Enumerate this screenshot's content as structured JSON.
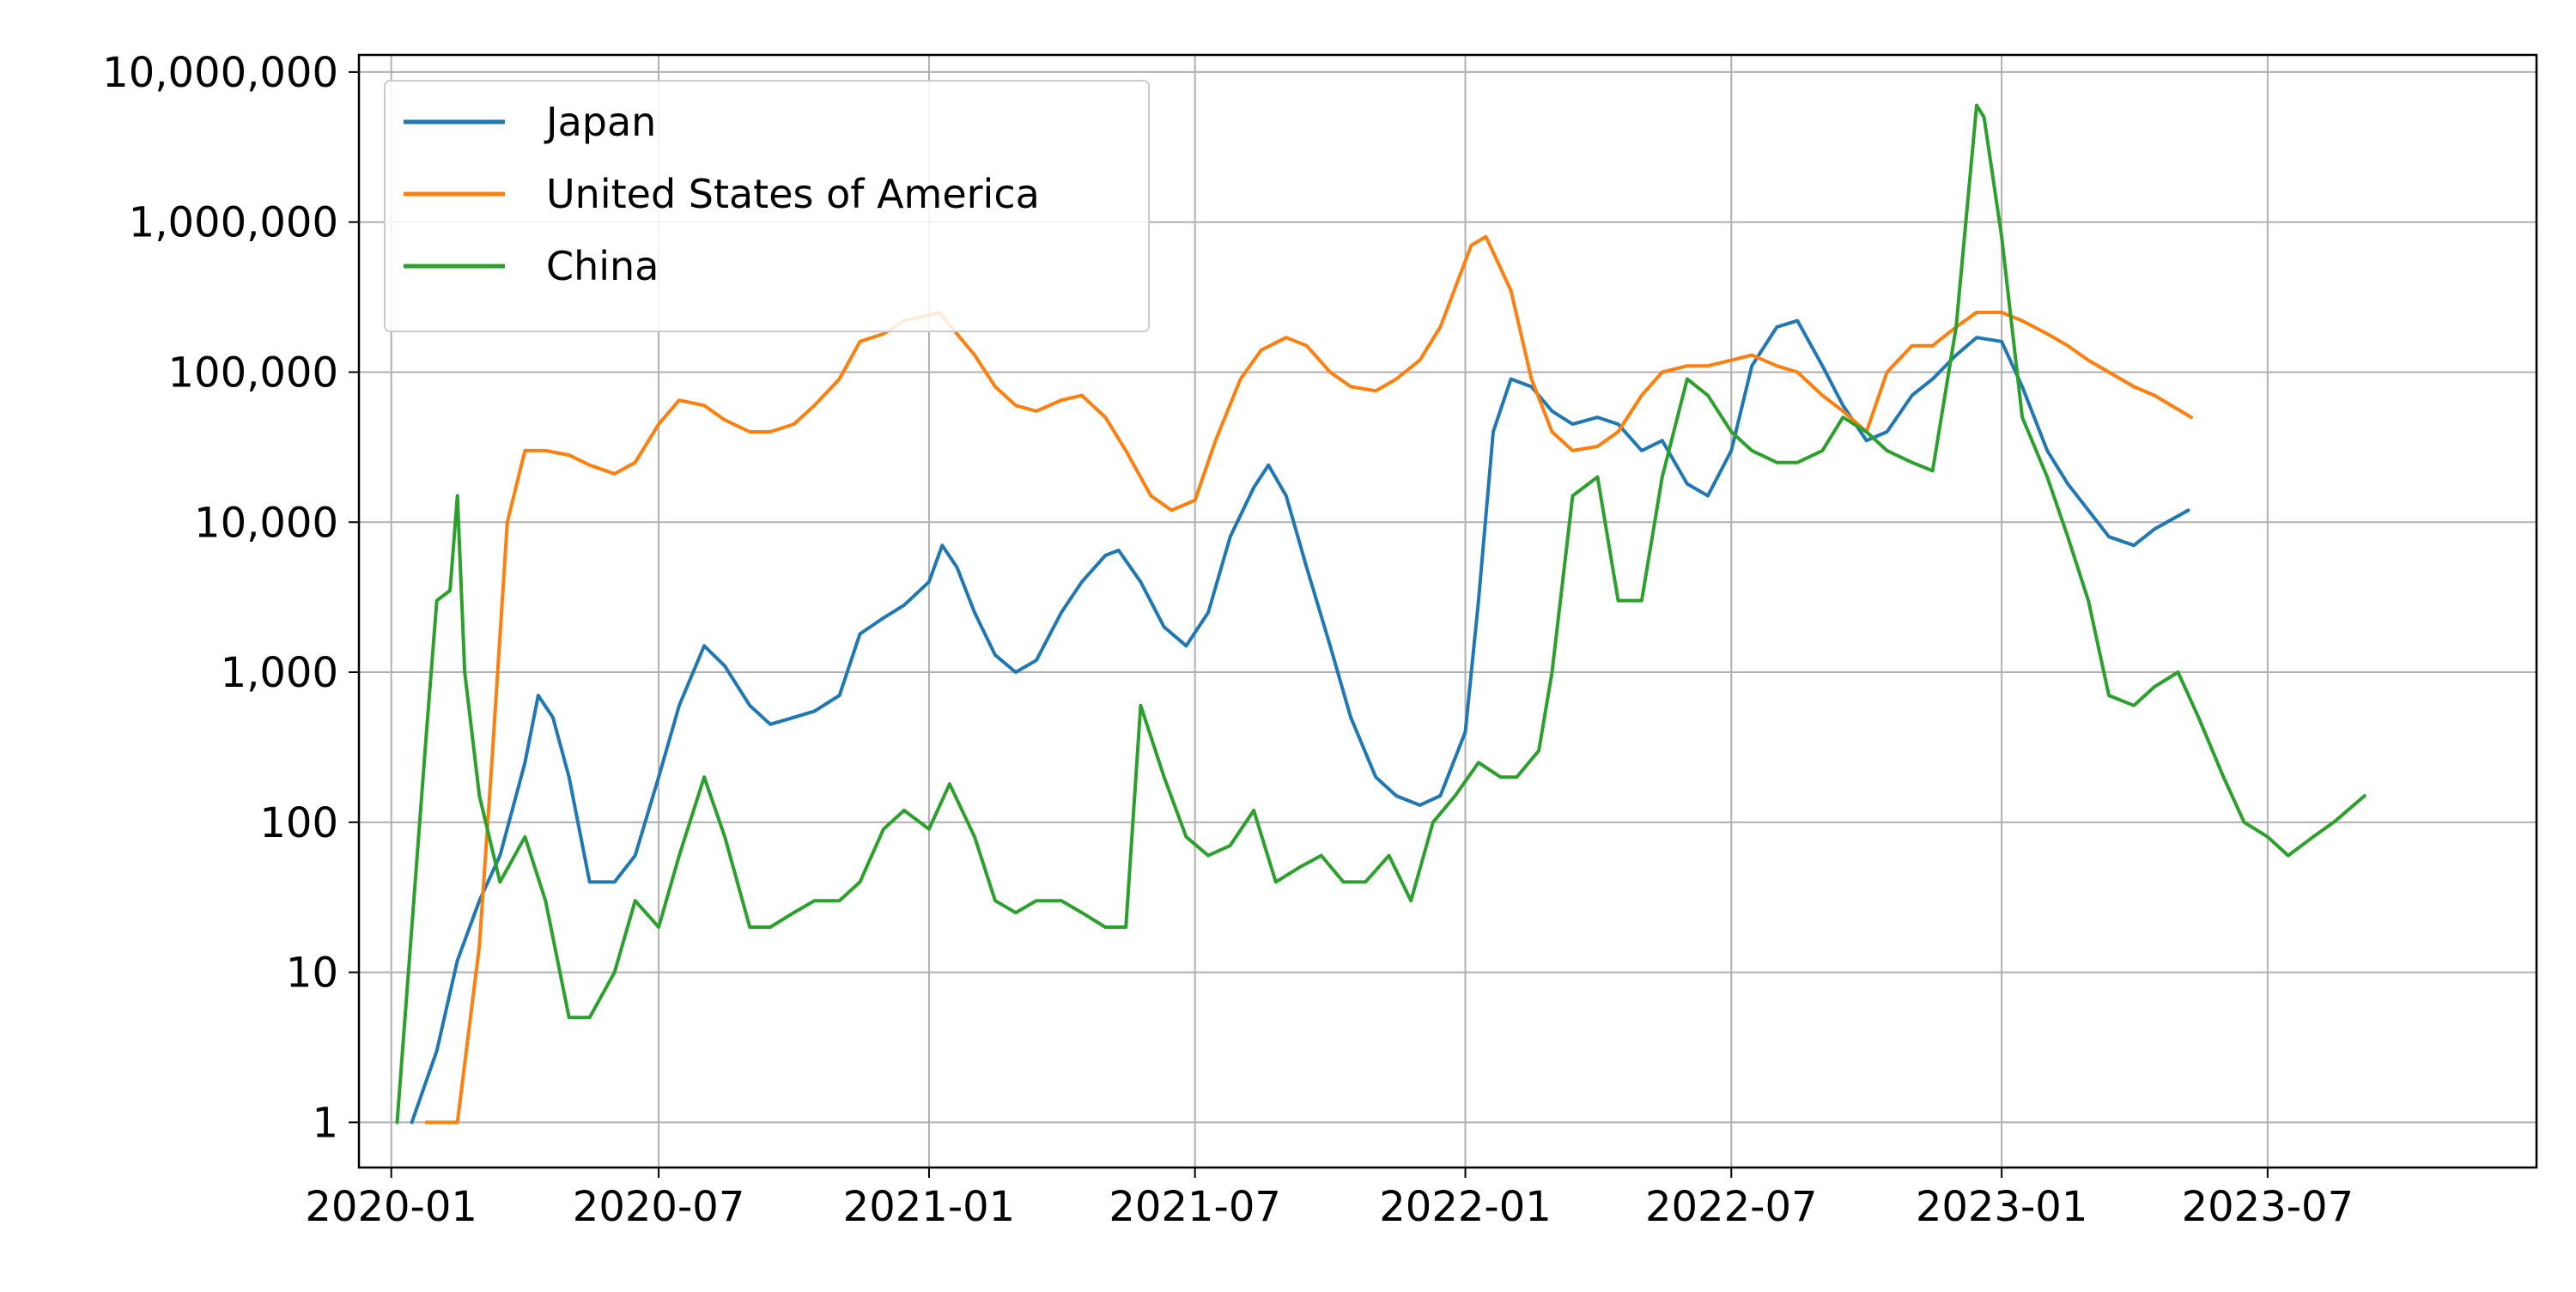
{
  "chart_data": {
    "type": "line",
    "title": "",
    "xlabel": "",
    "ylabel": "",
    "yscale": "log",
    "ylim": [
      0.5,
      13000000
    ],
    "xlim": [
      "2019-12-10",
      "2023-12-31"
    ],
    "grid": true,
    "legend_position": "top-left",
    "x_ticks": [
      {
        "date": "2020-01-01",
        "label": "2020-01"
      },
      {
        "date": "2020-07-01",
        "label": "2020-07"
      },
      {
        "date": "2021-01-01",
        "label": "2021-01"
      },
      {
        "date": "2021-07-01",
        "label": "2021-07"
      },
      {
        "date": "2022-01-01",
        "label": "2022-01"
      },
      {
        "date": "2022-07-01",
        "label": "2022-07"
      },
      {
        "date": "2023-01-01",
        "label": "2023-01"
      },
      {
        "date": "2023-07-01",
        "label": "2023-07"
      }
    ],
    "y_ticks": [
      {
        "value": 1,
        "label": "1"
      },
      {
        "value": 10,
        "label": "10"
      },
      {
        "value": 100,
        "label": "100"
      },
      {
        "value": 1000,
        "label": "1,000"
      },
      {
        "value": 10000,
        "label": "10,000"
      },
      {
        "value": 100000,
        "label": "100,000"
      },
      {
        "value": 1000000,
        "label": "1,000,000"
      },
      {
        "value": 10000000,
        "label": "10,000,000"
      }
    ],
    "series": [
      {
        "name": "Japan",
        "color": "#1f77b4",
        "points": [
          [
            "2020-01-15",
            1
          ],
          [
            "2020-02-01",
            3
          ],
          [
            "2020-02-15",
            12
          ],
          [
            "2020-03-01",
            30
          ],
          [
            "2020-03-15",
            60
          ],
          [
            "2020-04-01",
            250
          ],
          [
            "2020-04-10",
            700
          ],
          [
            "2020-04-20",
            500
          ],
          [
            "2020-05-01",
            200
          ],
          [
            "2020-05-15",
            40
          ],
          [
            "2020-06-01",
            40
          ],
          [
            "2020-06-15",
            60
          ],
          [
            "2020-07-01",
            200
          ],
          [
            "2020-07-15",
            600
          ],
          [
            "2020-08-01",
            1500
          ],
          [
            "2020-08-15",
            1100
          ],
          [
            "2020-09-01",
            600
          ],
          [
            "2020-09-15",
            450
          ],
          [
            "2020-10-01",
            500
          ],
          [
            "2020-10-15",
            550
          ],
          [
            "2020-11-01",
            700
          ],
          [
            "2020-11-15",
            1800
          ],
          [
            "2020-12-01",
            2300
          ],
          [
            "2020-12-15",
            2800
          ],
          [
            "2021-01-01",
            4000
          ],
          [
            "2021-01-10",
            7000
          ],
          [
            "2021-01-20",
            5000
          ],
          [
            "2021-02-01",
            2500
          ],
          [
            "2021-02-15",
            1300
          ],
          [
            "2021-03-01",
            1000
          ],
          [
            "2021-03-15",
            1200
          ],
          [
            "2021-04-01",
            2500
          ],
          [
            "2021-04-15",
            4000
          ],
          [
            "2021-05-01",
            6000
          ],
          [
            "2021-05-10",
            6500
          ],
          [
            "2021-05-25",
            4000
          ],
          [
            "2021-06-10",
            2000
          ],
          [
            "2021-06-25",
            1500
          ],
          [
            "2021-07-10",
            2500
          ],
          [
            "2021-07-25",
            8000
          ],
          [
            "2021-08-10",
            17000
          ],
          [
            "2021-08-20",
            24000
          ],
          [
            "2021-09-01",
            15000
          ],
          [
            "2021-09-15",
            5000
          ],
          [
            "2021-10-01",
            1500
          ],
          [
            "2021-10-15",
            500
          ],
          [
            "2021-11-01",
            200
          ],
          [
            "2021-11-15",
            150
          ],
          [
            "2021-12-01",
            130
          ],
          [
            "2021-12-15",
            150
          ],
          [
            "2022-01-01",
            400
          ],
          [
            "2022-01-10",
            3000
          ],
          [
            "2022-01-20",
            40000
          ],
          [
            "2022-02-01",
            90000
          ],
          [
            "2022-02-15",
            80000
          ],
          [
            "2022-03-01",
            55000
          ],
          [
            "2022-03-15",
            45000
          ],
          [
            "2022-04-01",
            50000
          ],
          [
            "2022-04-15",
            45000
          ],
          [
            "2022-05-01",
            30000
          ],
          [
            "2022-05-15",
            35000
          ],
          [
            "2022-06-01",
            18000
          ],
          [
            "2022-06-15",
            15000
          ],
          [
            "2022-07-01",
            30000
          ],
          [
            "2022-07-15",
            110000
          ],
          [
            "2022-08-01",
            200000
          ],
          [
            "2022-08-15",
            220000
          ],
          [
            "2022-09-01",
            110000
          ],
          [
            "2022-09-15",
            60000
          ],
          [
            "2022-10-01",
            35000
          ],
          [
            "2022-10-15",
            40000
          ],
          [
            "2022-11-01",
            70000
          ],
          [
            "2022-11-15",
            90000
          ],
          [
            "2022-12-01",
            130000
          ],
          [
            "2022-12-15",
            170000
          ],
          [
            "2023-01-01",
            160000
          ],
          [
            "2023-01-15",
            80000
          ],
          [
            "2023-02-01",
            30000
          ],
          [
            "2023-02-15",
            18000
          ],
          [
            "2023-03-01",
            12000
          ],
          [
            "2023-03-15",
            8000
          ],
          [
            "2023-04-01",
            7000
          ],
          [
            "2023-04-15",
            9000
          ],
          [
            "2023-05-08",
            12000
          ]
        ]
      },
      {
        "name": "United States of America",
        "color": "#ff7f0e",
        "points": [
          [
            "2020-01-25",
            1
          ],
          [
            "2020-02-15",
            1
          ],
          [
            "2020-03-01",
            15
          ],
          [
            "2020-03-10",
            300
          ],
          [
            "2020-03-20",
            10000
          ],
          [
            "2020-04-01",
            30000
          ],
          [
            "2020-04-15",
            30000
          ],
          [
            "2020-05-01",
            28000
          ],
          [
            "2020-05-15",
            24000
          ],
          [
            "2020-06-01",
            21000
          ],
          [
            "2020-06-15",
            25000
          ],
          [
            "2020-07-01",
            45000
          ],
          [
            "2020-07-15",
            65000
          ],
          [
            "2020-08-01",
            60000
          ],
          [
            "2020-08-15",
            48000
          ],
          [
            "2020-09-01",
            40000
          ],
          [
            "2020-09-15",
            40000
          ],
          [
            "2020-10-01",
            45000
          ],
          [
            "2020-10-15",
            60000
          ],
          [
            "2020-11-01",
            90000
          ],
          [
            "2020-11-15",
            160000
          ],
          [
            "2020-12-01",
            180000
          ],
          [
            "2020-12-15",
            220000
          ],
          [
            "2021-01-08",
            250000
          ],
          [
            "2021-01-20",
            180000
          ],
          [
            "2021-02-01",
            130000
          ],
          [
            "2021-02-15",
            80000
          ],
          [
            "2021-03-01",
            60000
          ],
          [
            "2021-03-15",
            55000
          ],
          [
            "2021-04-01",
            65000
          ],
          [
            "2021-04-15",
            70000
          ],
          [
            "2021-05-01",
            50000
          ],
          [
            "2021-05-15",
            30000
          ],
          [
            "2021-06-01",
            15000
          ],
          [
            "2021-06-15",
            12000
          ],
          [
            "2021-07-01",
            14000
          ],
          [
            "2021-07-15",
            35000
          ],
          [
            "2021-08-01",
            90000
          ],
          [
            "2021-08-15",
            140000
          ],
          [
            "2021-09-01",
            170000
          ],
          [
            "2021-09-15",
            150000
          ],
          [
            "2021-10-01",
            100000
          ],
          [
            "2021-10-15",
            80000
          ],
          [
            "2021-11-01",
            75000
          ],
          [
            "2021-11-15",
            90000
          ],
          [
            "2021-12-01",
            120000
          ],
          [
            "2021-12-15",
            200000
          ],
          [
            "2022-01-05",
            700000
          ],
          [
            "2022-01-15",
            800000
          ],
          [
            "2022-02-01",
            350000
          ],
          [
            "2022-02-15",
            90000
          ],
          [
            "2022-03-01",
            40000
          ],
          [
            "2022-03-15",
            30000
          ],
          [
            "2022-04-01",
            32000
          ],
          [
            "2022-04-15",
            40000
          ],
          [
            "2022-05-01",
            70000
          ],
          [
            "2022-05-15",
            100000
          ],
          [
            "2022-06-01",
            110000
          ],
          [
            "2022-06-15",
            110000
          ],
          [
            "2022-07-01",
            120000
          ],
          [
            "2022-07-15",
            130000
          ],
          [
            "2022-08-01",
            110000
          ],
          [
            "2022-08-15",
            100000
          ],
          [
            "2022-09-01",
            70000
          ],
          [
            "2022-09-15",
            55000
          ],
          [
            "2022-10-01",
            40000
          ],
          [
            "2022-10-15",
            100000
          ],
          [
            "2022-11-01",
            150000
          ],
          [
            "2022-11-15",
            150000
          ],
          [
            "2022-12-01",
            200000
          ],
          [
            "2022-12-15",
            250000
          ],
          [
            "2023-01-01",
            250000
          ],
          [
            "2023-01-15",
            220000
          ],
          [
            "2023-02-01",
            180000
          ],
          [
            "2023-02-15",
            150000
          ],
          [
            "2023-03-01",
            120000
          ],
          [
            "2023-03-15",
            100000
          ],
          [
            "2023-04-01",
            80000
          ],
          [
            "2023-04-15",
            70000
          ],
          [
            "2023-05-10",
            50000
          ]
        ]
      },
      {
        "name": "China",
        "color": "#2ca02c",
        "points": [
          [
            "2020-01-05",
            1
          ],
          [
            "2020-01-15",
            20
          ],
          [
            "2020-01-25",
            400
          ],
          [
            "2020-02-01",
            3000
          ],
          [
            "2020-02-10",
            3500
          ],
          [
            "2020-02-15",
            15000
          ],
          [
            "2020-02-20",
            1000
          ],
          [
            "2020-03-01",
            150
          ],
          [
            "2020-03-15",
            40
          ],
          [
            "2020-04-01",
            80
          ],
          [
            "2020-04-15",
            30
          ],
          [
            "2020-05-01",
            5
          ],
          [
            "2020-05-15",
            5
          ],
          [
            "2020-06-01",
            10
          ],
          [
            "2020-06-15",
            30
          ],
          [
            "2020-07-01",
            20
          ],
          [
            "2020-07-15",
            60
          ],
          [
            "2020-08-01",
            200
          ],
          [
            "2020-08-15",
            80
          ],
          [
            "2020-09-01",
            20
          ],
          [
            "2020-09-15",
            20
          ],
          [
            "2020-10-01",
            25
          ],
          [
            "2020-10-15",
            30
          ],
          [
            "2020-11-01",
            30
          ],
          [
            "2020-11-15",
            40
          ],
          [
            "2020-12-01",
            90
          ],
          [
            "2020-12-15",
            120
          ],
          [
            "2021-01-01",
            90
          ],
          [
            "2021-01-15",
            180
          ],
          [
            "2021-02-01",
            80
          ],
          [
            "2021-02-15",
            30
          ],
          [
            "2021-03-01",
            25
          ],
          [
            "2021-03-15",
            30
          ],
          [
            "2021-04-01",
            30
          ],
          [
            "2021-04-15",
            25
          ],
          [
            "2021-05-01",
            20
          ],
          [
            "2021-05-15",
            20
          ],
          [
            "2021-05-25",
            600
          ],
          [
            "2021-06-10",
            200
          ],
          [
            "2021-06-25",
            80
          ],
          [
            "2021-07-10",
            60
          ],
          [
            "2021-07-25",
            70
          ],
          [
            "2021-08-10",
            120
          ],
          [
            "2021-08-25",
            40
          ],
          [
            "2021-09-10",
            50
          ],
          [
            "2021-09-25",
            60
          ],
          [
            "2021-10-10",
            40
          ],
          [
            "2021-10-25",
            40
          ],
          [
            "2021-11-10",
            60
          ],
          [
            "2021-11-25",
            30
          ],
          [
            "2021-12-10",
            100
          ],
          [
            "2021-12-25",
            150
          ],
          [
            "2022-01-10",
            250
          ],
          [
            "2022-01-25",
            200
          ],
          [
            "2022-02-05",
            200
          ],
          [
            "2022-02-20",
            300
          ],
          [
            "2022-03-01",
            1000
          ],
          [
            "2022-03-15",
            15000
          ],
          [
            "2022-04-01",
            20000
          ],
          [
            "2022-04-15",
            3000
          ],
          [
            "2022-05-01",
            3000
          ],
          [
            "2022-05-15",
            20000
          ],
          [
            "2022-06-01",
            90000
          ],
          [
            "2022-06-15",
            70000
          ],
          [
            "2022-07-01",
            40000
          ],
          [
            "2022-07-15",
            30000
          ],
          [
            "2022-08-01",
            25000
          ],
          [
            "2022-08-15",
            25000
          ],
          [
            "2022-09-01",
            30000
          ],
          [
            "2022-09-15",
            50000
          ],
          [
            "2022-10-01",
            40000
          ],
          [
            "2022-10-15",
            30000
          ],
          [
            "2022-11-01",
            25000
          ],
          [
            "2022-11-15",
            22000
          ],
          [
            "2022-12-01",
            200000
          ],
          [
            "2022-12-15",
            6000000
          ],
          [
            "2022-12-20",
            5000000
          ],
          [
            "2023-01-01",
            800000
          ],
          [
            "2023-01-15",
            50000
          ],
          [
            "2023-02-01",
            20000
          ],
          [
            "2023-02-15",
            8000
          ],
          [
            "2023-03-01",
            3000
          ],
          [
            "2023-03-15",
            700
          ],
          [
            "2023-04-01",
            600
          ],
          [
            "2023-04-15",
            800
          ],
          [
            "2023-05-01",
            1000
          ],
          [
            "2023-05-15",
            500
          ],
          [
            "2023-06-01",
            200
          ],
          [
            "2023-06-15",
            100
          ],
          [
            "2023-07-01",
            80
          ],
          [
            "2023-07-15",
            60
          ],
          [
            "2023-08-01",
            80
          ],
          [
            "2023-08-15",
            100
          ],
          [
            "2023-09-05",
            150
          ]
        ]
      }
    ]
  }
}
